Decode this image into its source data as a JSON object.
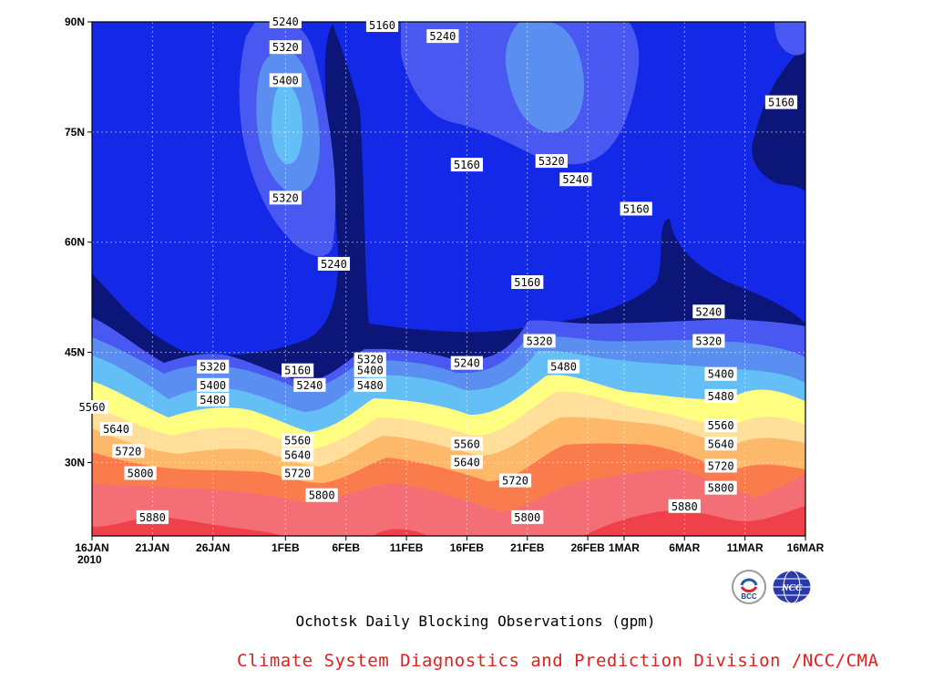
{
  "chart_data": {
    "type": "contour",
    "title": "Ochotsk Daily Blocking Observations (gpm)",
    "x": {
      "ticks": [
        "16JAN",
        "21JAN",
        "26JAN",
        "1FEB",
        "6FEB",
        "11FEB",
        "16FEB",
        "21FEB",
        "26FEB",
        "1MAR",
        "6MAR",
        "11MAR",
        "16MAR"
      ],
      "year_label": "2010",
      "range": [
        "2010-01-16",
        "2010-03-16"
      ]
    },
    "y": {
      "ticks": [
        "30N",
        "45N",
        "60N",
        "75N",
        "90N"
      ],
      "range": [
        20,
        90
      ],
      "unit": "latitude"
    },
    "contour_levels": [
      5160,
      5240,
      5320,
      5400,
      5480,
      5560,
      5640,
      5720,
      5800,
      5880
    ],
    "level_colors": [
      "#0b1678",
      "#1428e8",
      "#4858f0",
      "#5a8ef0",
      "#64bff7",
      "#ffff82",
      "#ffdf9a",
      "#fdb86a",
      "#fa7c4c",
      "#f46e76",
      "#f0404c"
    ],
    "contour_labels": [
      {
        "value": "5240",
        "lat": 90,
        "date": "2010-02-01"
      },
      {
        "value": "5320",
        "lat": 86.5,
        "date": "2010-02-01"
      },
      {
        "value": "5400",
        "lat": 82,
        "date": "2010-02-01"
      },
      {
        "value": "5320",
        "lat": 66,
        "date": "2010-02-01"
      },
      {
        "value": "5160",
        "lat": 89.5,
        "date": "2010-02-09"
      },
      {
        "value": "5240",
        "lat": 88,
        "date": "2010-02-14"
      },
      {
        "value": "5320",
        "lat": 71,
        "date": "2010-02-23"
      },
      {
        "value": "5240",
        "lat": 68.5,
        "date": "2010-02-25"
      },
      {
        "value": "5160",
        "lat": 70.5,
        "date": "2010-02-16"
      },
      {
        "value": "5160",
        "lat": 79,
        "date": "2010-03-14"
      },
      {
        "value": "5160",
        "lat": 64.5,
        "date": "2010-03-02"
      },
      {
        "value": "5240",
        "lat": 57,
        "date": "2010-02-05"
      },
      {
        "value": "5160",
        "lat": 54.5,
        "date": "2010-02-21"
      },
      {
        "value": "5240",
        "lat": 50.5,
        "date": "2010-03-08"
      },
      {
        "value": "5320",
        "lat": 46.5,
        "date": "2010-02-22"
      },
      {
        "value": "5320",
        "lat": 46.5,
        "date": "2010-03-08"
      },
      {
        "value": "5320",
        "lat": 43,
        "date": "2010-01-26"
      },
      {
        "value": "5400",
        "lat": 40.5,
        "date": "2010-01-26"
      },
      {
        "value": "5480",
        "lat": 38.5,
        "date": "2010-01-26"
      },
      {
        "value": "5160",
        "lat": 42.5,
        "date": "2010-02-02"
      },
      {
        "value": "5240",
        "lat": 40.5,
        "date": "2010-02-03"
      },
      {
        "value": "5320",
        "lat": 44,
        "date": "2010-02-08"
      },
      {
        "value": "5400",
        "lat": 42.5,
        "date": "2010-02-08"
      },
      {
        "value": "5480",
        "lat": 40.5,
        "date": "2010-02-08"
      },
      {
        "value": "5240",
        "lat": 43.5,
        "date": "2010-02-16"
      },
      {
        "value": "5480",
        "lat": 43,
        "date": "2010-02-24"
      },
      {
        "value": "5400",
        "lat": 42,
        "date": "2010-03-09"
      },
      {
        "value": "5480",
        "lat": 39,
        "date": "2010-03-09"
      },
      {
        "value": "5560",
        "lat": 35,
        "date": "2010-03-09"
      },
      {
        "value": "5640",
        "lat": 32.5,
        "date": "2010-03-09"
      },
      {
        "value": "5720",
        "lat": 29.5,
        "date": "2010-03-09"
      },
      {
        "value": "5800",
        "lat": 26.5,
        "date": "2010-03-09"
      },
      {
        "value": "5880",
        "lat": 24,
        "date": "2010-03-06"
      },
      {
        "value": "5560",
        "lat": 37.5,
        "date": "2010-01-16"
      },
      {
        "value": "5640",
        "lat": 34.5,
        "date": "2010-01-18"
      },
      {
        "value": "5720",
        "lat": 31.5,
        "date": "2010-01-19"
      },
      {
        "value": "5800",
        "lat": 28.5,
        "date": "2010-01-20"
      },
      {
        "value": "5880",
        "lat": 22.5,
        "date": "2010-01-21"
      },
      {
        "value": "5560",
        "lat": 33,
        "date": "2010-02-02"
      },
      {
        "value": "5640",
        "lat": 31,
        "date": "2010-02-02"
      },
      {
        "value": "5720",
        "lat": 28.5,
        "date": "2010-02-02"
      },
      {
        "value": "5800",
        "lat": 25.5,
        "date": "2010-02-04"
      },
      {
        "value": "5560",
        "lat": 32.5,
        "date": "2010-02-16"
      },
      {
        "value": "5640",
        "lat": 30,
        "date": "2010-02-16"
      },
      {
        "value": "5720",
        "lat": 27.5,
        "date": "2010-02-20"
      },
      {
        "value": "5800",
        "lat": 22.5,
        "date": "2010-02-21"
      }
    ]
  },
  "caption": "Ochotsk Daily Blocking Observations (gpm)",
  "credit": "Climate System Diagnostics and Prediction Division /NCC/CMA",
  "logos": [
    {
      "icon": "bcc-logo-icon",
      "text": "BCC"
    },
    {
      "icon": "ncc-globe-logo-icon",
      "text": "NCC"
    }
  ]
}
